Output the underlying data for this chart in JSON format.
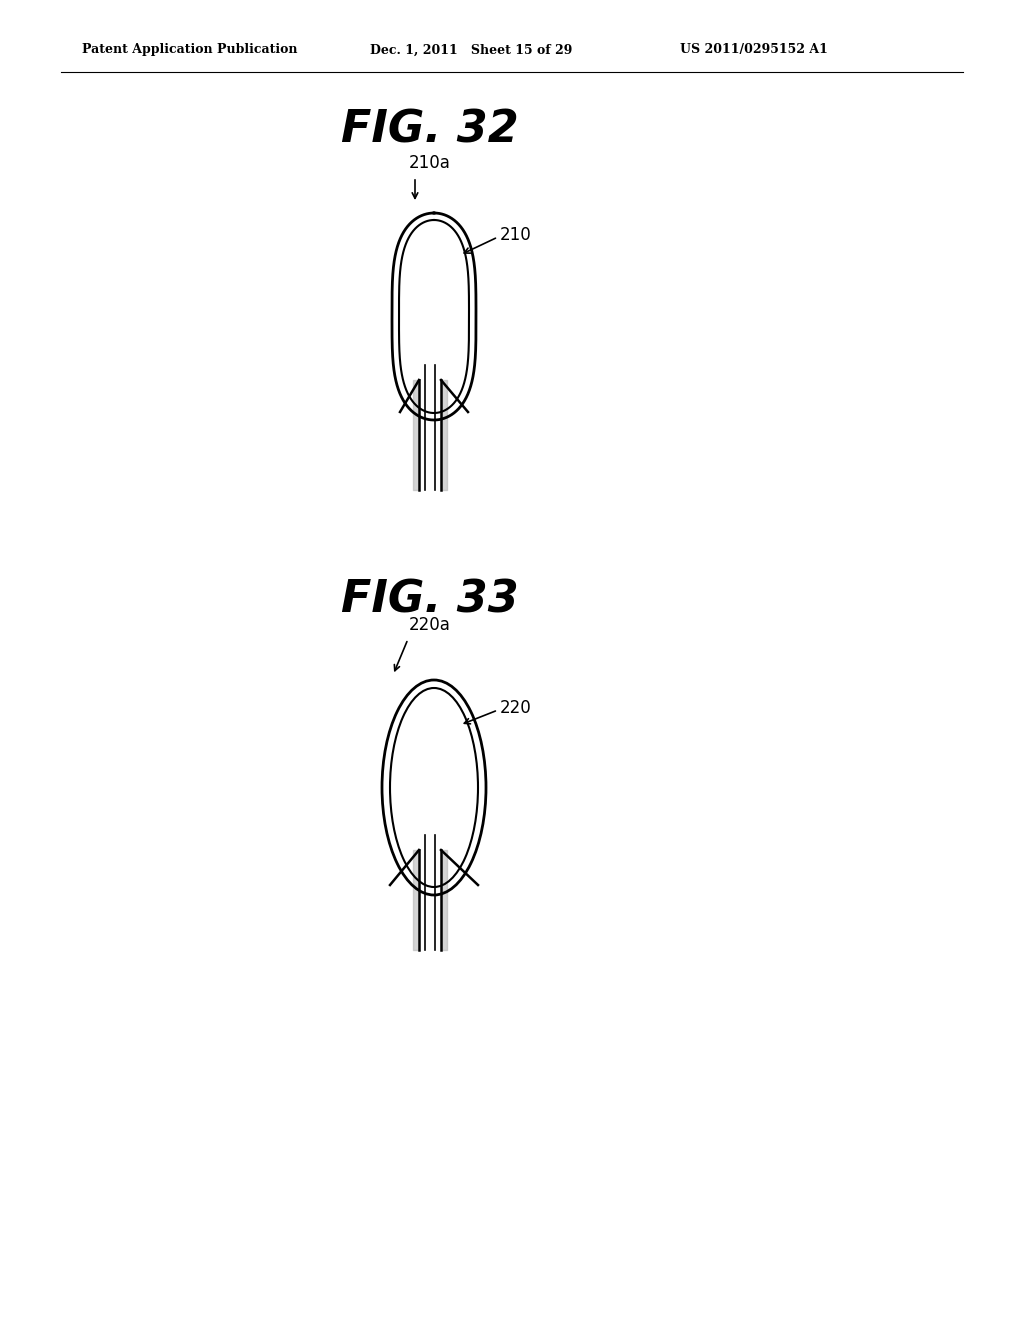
{
  "background_color": "#ffffff",
  "header_left": "Patent Application Publication",
  "header_mid": "Dec. 1, 2011   Sheet 15 of 29",
  "header_right": "US 2011/0295152 A1",
  "fig32_title": "FIG. 32",
  "fig33_title": "FIG. 33",
  "fig32_label_a": "210a",
  "fig32_label_b": "210",
  "fig33_label_a": "220a",
  "fig33_label_b": "220",
  "line_color": "#000000",
  "gray_color": "#888888"
}
